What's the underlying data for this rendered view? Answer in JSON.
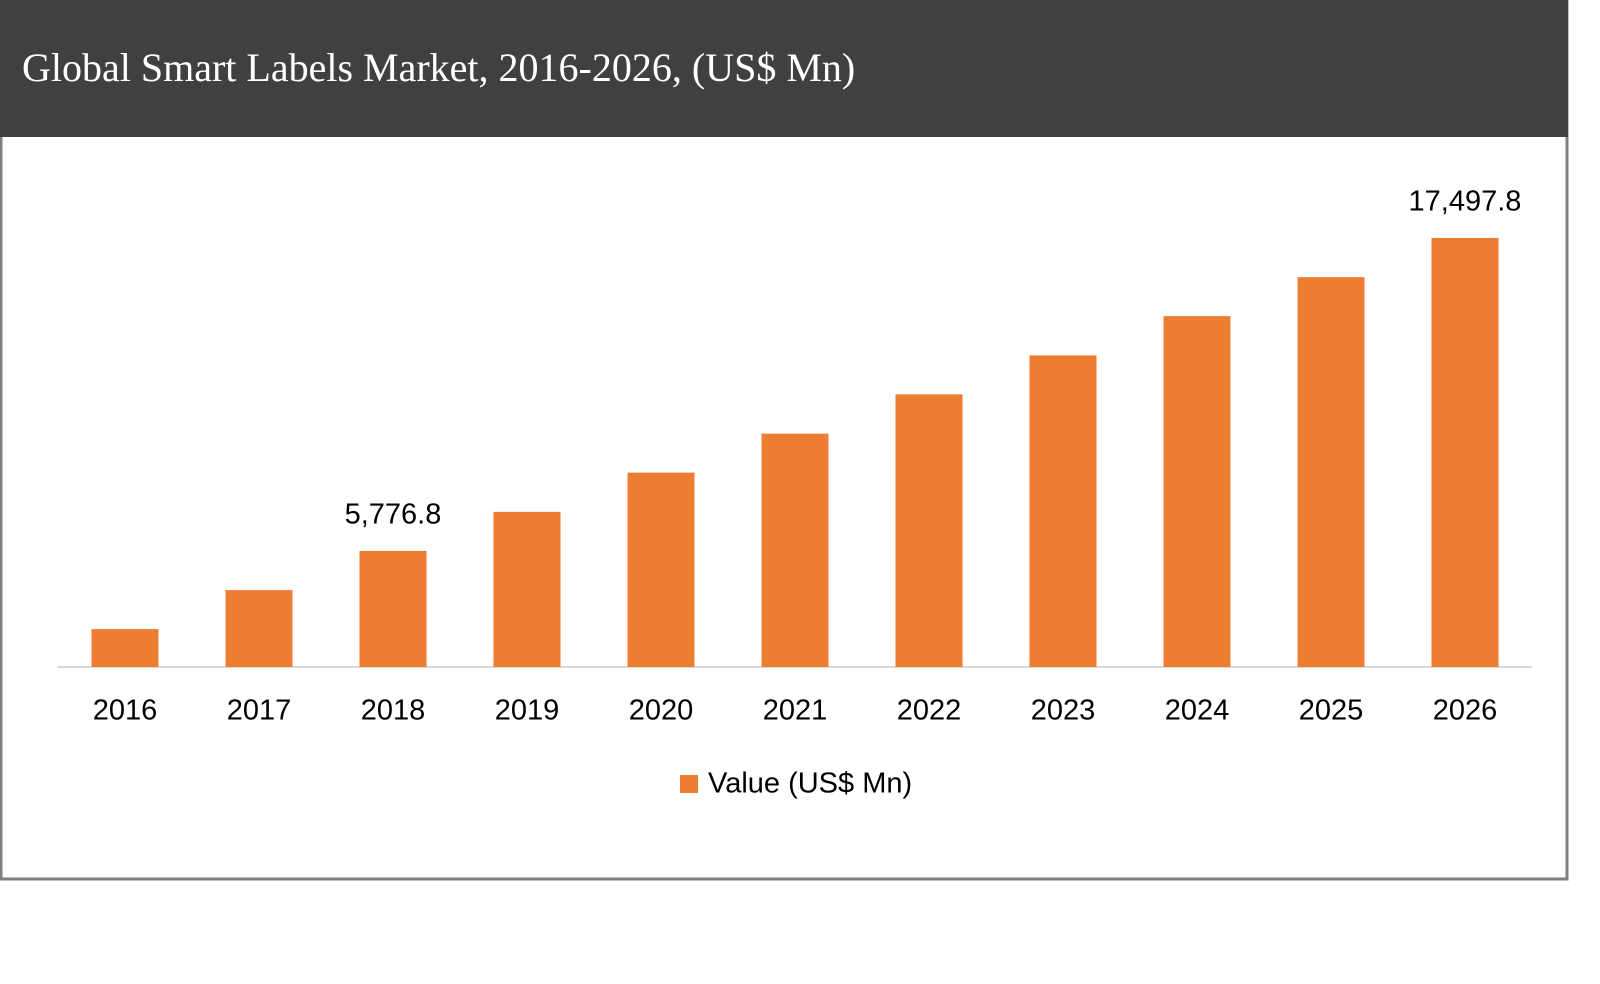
{
  "chart_data": {
    "type": "bar",
    "title": "Global Smart Labels Market, 2016-2026, (US$ Mn)",
    "categories": [
      "2016",
      "2017",
      "2018",
      "2019",
      "2020",
      "2021",
      "2022",
      "2023",
      "2024",
      "2025",
      "2026"
    ],
    "series": [
      {
        "name": "Value (US$ Mn)",
        "color": "#ed7d31",
        "values": [
          2850,
          4310,
          5776.8,
          7240,
          8710,
          10170,
          11640,
          13100,
          14570,
          16030,
          17497.8
        ],
        "value_labels": [
          null,
          null,
          "5,776.8",
          null,
          null,
          null,
          null,
          null,
          null,
          null,
          "17,497.8"
        ]
      }
    ],
    "ylim": [
      1430,
      18920
    ]
  }
}
